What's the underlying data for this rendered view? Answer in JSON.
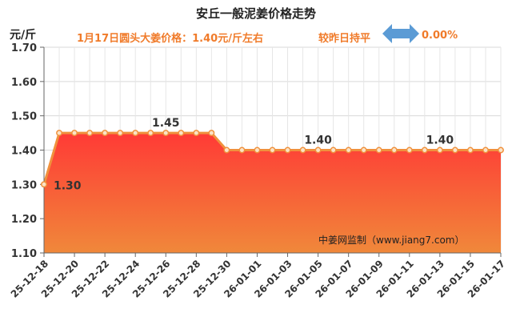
{
  "title": "安丘一般泥姜价格走势",
  "subtitle": {
    "left": "1月17日圆头大姜价格：1.40元/斤左右",
    "mid": "较昨日持平",
    "right": "0.00%"
  },
  "unit": "元/斤",
  "watermark": "中姜网监制（www.jiang7.com）",
  "colors": {
    "line": "#f0913d",
    "fill_top": "#ff3a36",
    "fill_bottom": "#f0883a",
    "accent": "#f07b2a",
    "arrow": "#5b9bd5"
  },
  "icons": {
    "trend": "left-right-arrow-icon"
  },
  "chart_data": {
    "type": "area",
    "title": "安丘一般泥姜价格走势",
    "ylabel": "元/斤",
    "xlabel": "",
    "ylim": [
      1.1,
      1.7
    ],
    "yticks": [
      "1.10",
      "1.20",
      "1.30",
      "1.40",
      "1.50",
      "1.60",
      "1.70"
    ],
    "grid": true,
    "x": [
      "25-12-18",
      "25-12-19",
      "25-12-20",
      "25-12-21",
      "25-12-22",
      "25-12-23",
      "25-12-24",
      "25-12-25",
      "25-12-26",
      "25-12-27",
      "25-12-28",
      "25-12-29",
      "25-12-30",
      "25-12-31",
      "26-01-01",
      "26-01-02",
      "26-01-03",
      "26-01-04",
      "26-01-05",
      "26-01-06",
      "26-01-07",
      "26-01-08",
      "26-01-09",
      "26-01-10",
      "26-01-11",
      "26-01-12",
      "26-01-13",
      "26-01-14",
      "26-01-15",
      "26-01-16",
      "26-01-17"
    ],
    "xtick_labels": [
      "25-12-18",
      "25-12-20",
      "25-12-22",
      "25-12-24",
      "25-12-26",
      "25-12-28",
      "25-12-30",
      "26-01-01",
      "26-01-03",
      "26-01-05",
      "26-01-07",
      "26-01-09",
      "26-01-11",
      "26-01-13",
      "26-01-15",
      "26-01-17"
    ],
    "values": [
      1.3,
      1.45,
      1.45,
      1.45,
      1.45,
      1.45,
      1.45,
      1.45,
      1.45,
      1.45,
      1.45,
      1.45,
      1.4,
      1.4,
      1.4,
      1.4,
      1.4,
      1.4,
      1.4,
      1.4,
      1.4,
      1.4,
      1.4,
      1.4,
      1.4,
      1.4,
      1.4,
      1.4,
      1.4,
      1.4,
      1.4
    ],
    "data_labels": [
      {
        "index": 0,
        "text": "1.30"
      },
      {
        "index": 8,
        "text": "1.45"
      },
      {
        "index": 18,
        "text": "1.40"
      },
      {
        "index": 26,
        "text": "1.40"
      }
    ]
  }
}
